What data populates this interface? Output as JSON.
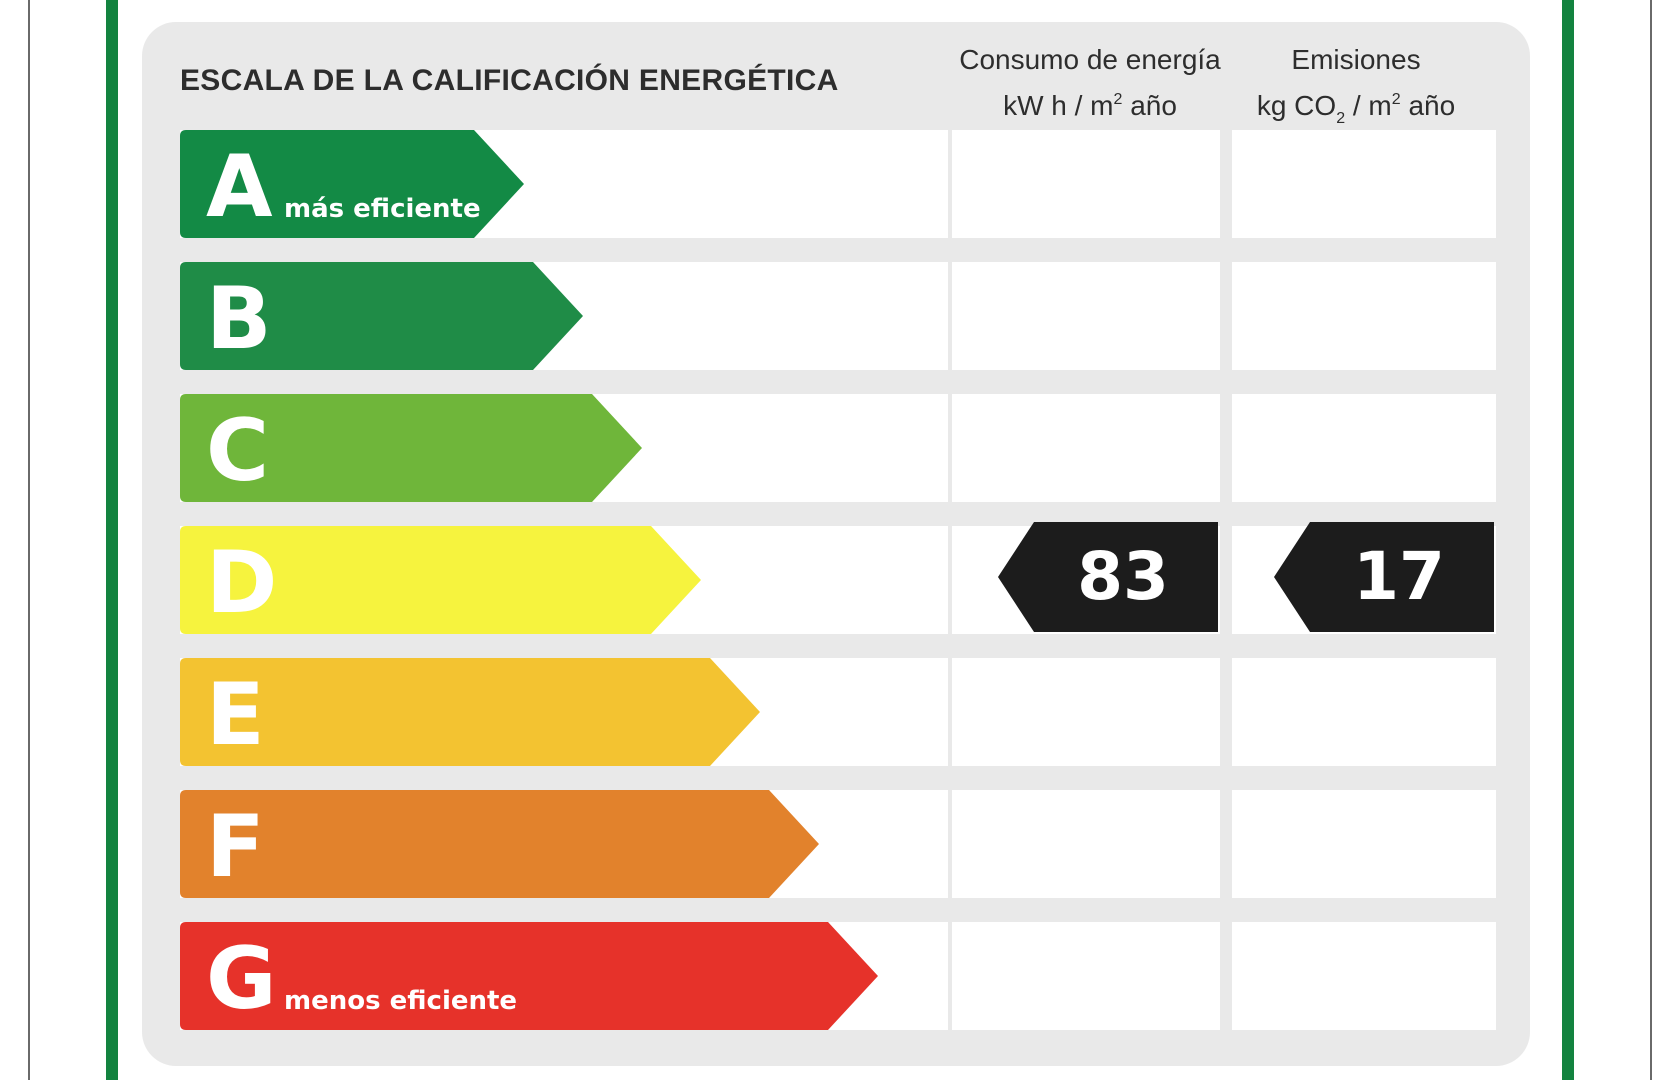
{
  "label": {
    "title": "ESCALA DE LA CALIFICACIÓN ENERGÉTICA",
    "columns": [
      {
        "line1": "Consumo de energía",
        "unit_a": "kW h  / m",
        "unit_sup": "2",
        "unit_b": " año"
      },
      {
        "line1": "Emisiones",
        "unit_a": "kg CO",
        "unit_sub": "2",
        "unit_mid": "  / m",
        "unit_sup": "2",
        "unit_b": " año"
      }
    ],
    "ratings": [
      {
        "letter": "A",
        "caption": "más eficiente",
        "color": "#138a45"
      },
      {
        "letter": "B",
        "caption": "",
        "color": "#1f8c47"
      },
      {
        "letter": "C",
        "caption": "",
        "color": "#6fb63a"
      },
      {
        "letter": "D",
        "caption": "",
        "color": "#f6f33e"
      },
      {
        "letter": "E",
        "caption": "",
        "color": "#f3c331"
      },
      {
        "letter": "F",
        "caption": "",
        "color": "#e2822c"
      },
      {
        "letter": "G",
        "caption": "menos eficiente",
        "color": "#e6322a"
      }
    ],
    "current_rating": "D",
    "consumption_value": "83",
    "emissions_value": "17",
    "badge_color": "#1c1c1c",
    "border_color": "#13833f"
  }
}
